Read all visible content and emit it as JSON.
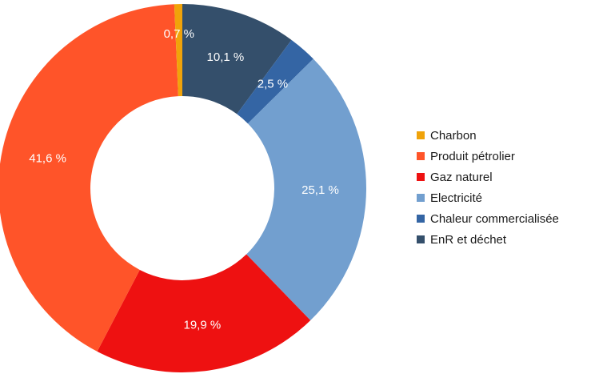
{
  "chart_data": {
    "type": "pie",
    "donut": true,
    "title": "",
    "legend_position": "right",
    "slices": [
      {
        "name": "Charbon",
        "value": 0.7,
        "label": "0,7 %",
        "color": "#F0A30A"
      },
      {
        "name": "Produit pétrolier",
        "value": 41.6,
        "label": "41,6 %",
        "color": "#FF5429"
      },
      {
        "name": "Gaz naturel",
        "value": 19.9,
        "label": "19,9 %",
        "color": "#EE1111"
      },
      {
        "name": "Electricité",
        "value": 25.1,
        "label": "25,1 %",
        "color": "#729FCF"
      },
      {
        "name": "Chaleur commercialisée",
        "value": 2.5,
        "label": "2,5 %",
        "color": "#3465A4"
      },
      {
        "name": "EnR et déchet",
        "value": 10.1,
        "label": "10,1 %",
        "color": "#344F6B"
      }
    ]
  }
}
